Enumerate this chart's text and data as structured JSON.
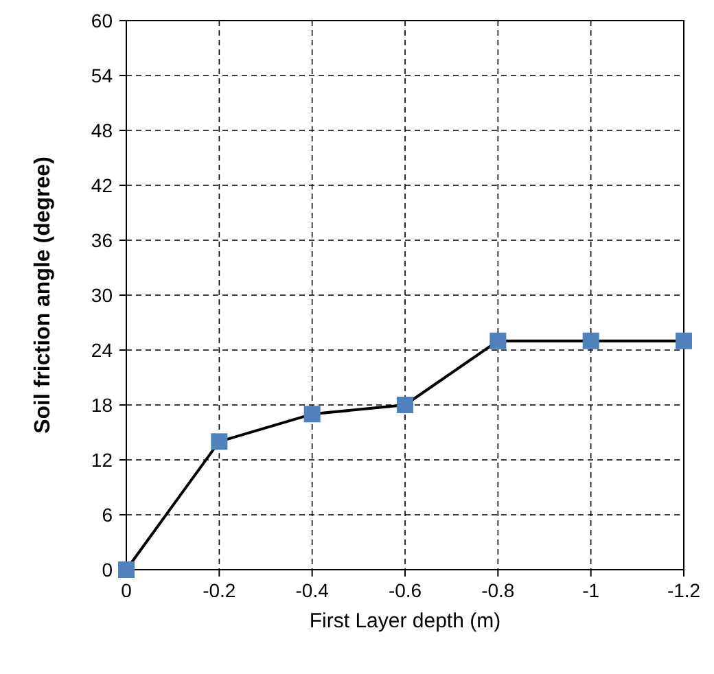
{
  "chart_data": {
    "type": "line",
    "xlabel": "First Layer depth (m)",
    "ylabel": "Soil friction angle (degree)",
    "x": [
      0,
      -0.2,
      -0.4,
      -0.6,
      -0.8,
      -1,
      -1.2
    ],
    "series": [
      {
        "color": "#4f81bd",
        "values": [
          0,
          14,
          17,
          18,
          25,
          25,
          25
        ]
      }
    ],
    "xlim": [
      0,
      -1.2
    ],
    "xticks": [
      0,
      -0.2,
      -0.4,
      -0.6,
      -0.8,
      -1,
      -1.2
    ],
    "ylim": [
      0,
      60
    ],
    "yticks": [
      0,
      6,
      12,
      18,
      24,
      30,
      36,
      42,
      48,
      54,
      60
    ],
    "grid": true,
    "marker": "square",
    "line_style": "solid"
  }
}
